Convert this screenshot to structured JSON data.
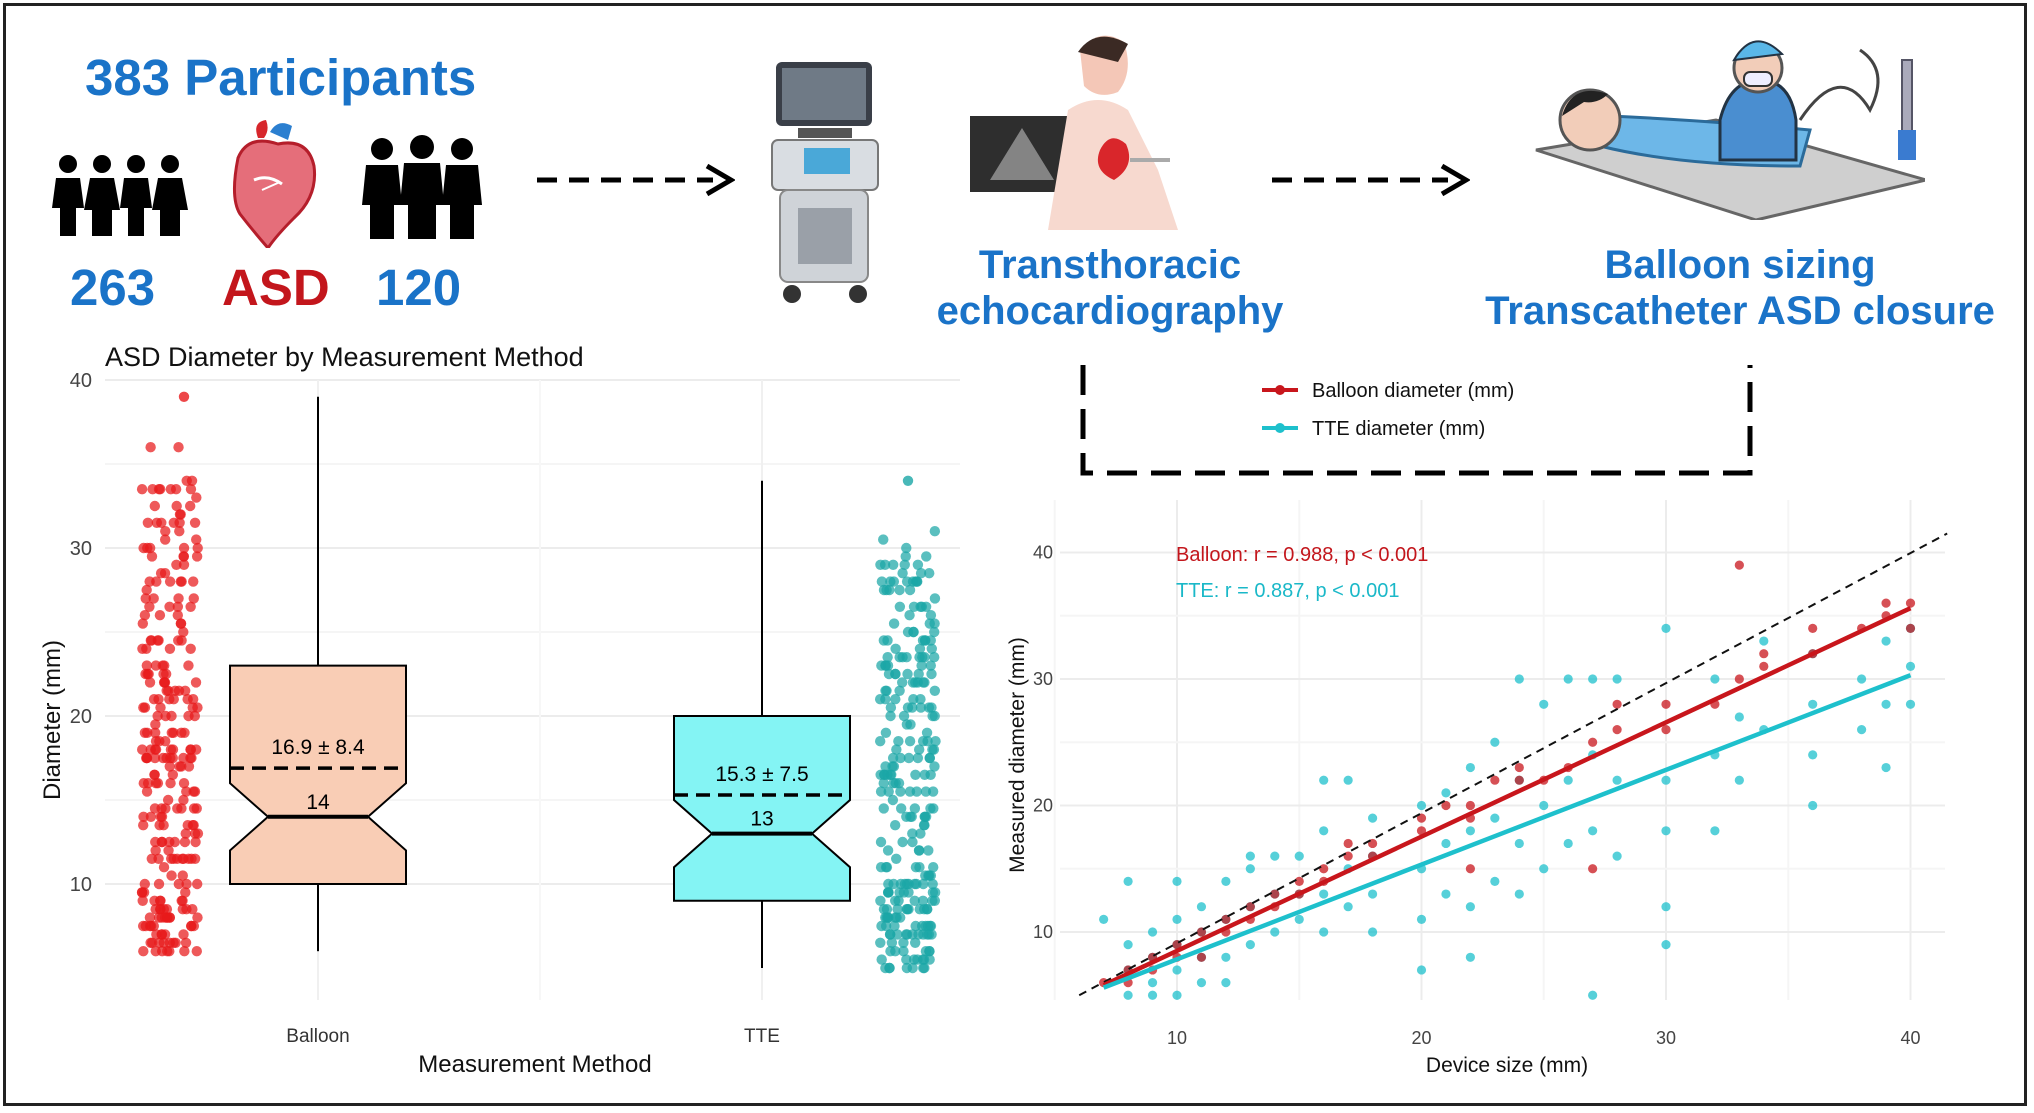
{
  "infographic": {
    "participants_title": "383 Participants",
    "group_left_count": "263",
    "group_center_label": "ASD",
    "group_right_count": "120",
    "step2_title_line1": "Transthoracic",
    "step2_title_line2": "echocardiography",
    "step3_title_line1": "Balloon sizing",
    "step3_title_line2": "Transcatheter ASD closure",
    "colors": {
      "blue": "#1a73c8",
      "red": "#c3161c"
    },
    "icons": [
      "family-icon",
      "heart-icon",
      "group-icon",
      "ultrasound-machine-icon",
      "echo-patient-icon",
      "catheter-procedure-icon",
      "arrow-icon"
    ]
  },
  "chart_data": [
    {
      "type": "box",
      "title": "ASD Diameter by Measurement Method",
      "xlabel": "Measurement Method",
      "ylabel": "Diameter (mm)",
      "ylim": [
        5,
        40
      ],
      "yticks": [
        10,
        20,
        30,
        40
      ],
      "categories": [
        "Balloon",
        "TTE"
      ],
      "grid": true,
      "boxes": [
        {
          "name": "Balloon",
          "min": 6,
          "q1": 10,
          "median": 14,
          "q3": 23,
          "max": 39,
          "mean": 16.9,
          "median_label": "14",
          "mean_label": "16.9 ± 8.4",
          "fill": "#f9cdb5",
          "point_color": "#e8191b"
        },
        {
          "name": "TTE",
          "min": 5,
          "q1": 9,
          "median": 13,
          "q3": 20,
          "max": 34,
          "mean": 15.3,
          "median_label": "13",
          "mean_label": "15.3 ± 7.5",
          "fill": "#84f4f4",
          "point_color": "#1aa6a6"
        }
      ]
    },
    {
      "type": "scatter",
      "xlabel": "Device size (mm)",
      "ylabel": "Measured diameter (mm)",
      "xlim": [
        6,
        41
      ],
      "ylim": [
        5,
        42
      ],
      "xticks": [
        10,
        20,
        30,
        40
      ],
      "yticks": [
        10,
        20,
        30,
        40
      ],
      "grid": true,
      "legend_position": "top",
      "annotations": [
        {
          "text": "Balloon: r = 0.988, p < 0.001",
          "color": "#c3161c"
        },
        {
          "text": "TTE: r = 0.887, p < 0.001",
          "color": "#1ab8c8"
        }
      ],
      "identity_line": {
        "x": [
          6,
          41.5
        ],
        "y": [
          5,
          41.5
        ]
      },
      "series": [
        {
          "name": "Balloon diameter (mm)",
          "color": "#c8161c",
          "fit": {
            "x": [
              7,
              40
            ],
            "y": [
              5.8,
              35.6
            ]
          },
          "points": [
            [
              7,
              6
            ],
            [
              8,
              6
            ],
            [
              8,
              7
            ],
            [
              9,
              7
            ],
            [
              9,
              8
            ],
            [
              10,
              8
            ],
            [
              10,
              9
            ],
            [
              11,
              8
            ],
            [
              11,
              10
            ],
            [
              12,
              10
            ],
            [
              12,
              11
            ],
            [
              13,
              11
            ],
            [
              13,
              12
            ],
            [
              14,
              12
            ],
            [
              14,
              13
            ],
            [
              15,
              13
            ],
            [
              15,
              14
            ],
            [
              16,
              14
            ],
            [
              16,
              15
            ],
            [
              17,
              16
            ],
            [
              17,
              17
            ],
            [
              18,
              16
            ],
            [
              18,
              17
            ],
            [
              20,
              18
            ],
            [
              20,
              19
            ],
            [
              21,
              20
            ],
            [
              22,
              15
            ],
            [
              22,
              19
            ],
            [
              22,
              20
            ],
            [
              23,
              22
            ],
            [
              24,
              22
            ],
            [
              24,
              23
            ],
            [
              25,
              22
            ],
            [
              26,
              23
            ],
            [
              27,
              15
            ],
            [
              27,
              25
            ],
            [
              28,
              26
            ],
            [
              28,
              28
            ],
            [
              30,
              26
            ],
            [
              30,
              28
            ],
            [
              32,
              28
            ],
            [
              33,
              39
            ],
            [
              33,
              30
            ],
            [
              34,
              31
            ],
            [
              34,
              32
            ],
            [
              36,
              32
            ],
            [
              36,
              34
            ],
            [
              38,
              34
            ],
            [
              39,
              35
            ],
            [
              39,
              36
            ],
            [
              40,
              34
            ],
            [
              40,
              36
            ]
          ]
        },
        {
          "name": "TTE diameter (mm)",
          "color": "#1ec0cc",
          "fit": {
            "x": [
              7,
              40
            ],
            "y": [
              5.6,
              30.3
            ]
          },
          "points": [
            [
              7,
              11
            ],
            [
              8,
              5
            ],
            [
              8,
              7
            ],
            [
              8,
              9
            ],
            [
              8,
              14
            ],
            [
              9,
              5
            ],
            [
              9,
              6
            ],
            [
              9,
              8
            ],
            [
              9,
              10
            ],
            [
              10,
              5
            ],
            [
              10,
              7
            ],
            [
              10,
              9
            ],
            [
              10,
              11
            ],
            [
              10,
              14
            ],
            [
              11,
              6
            ],
            [
              11,
              8
            ],
            [
              11,
              10
            ],
            [
              11,
              12
            ],
            [
              12,
              6
            ],
            [
              12,
              8
            ],
            [
              12,
              11
            ],
            [
              12,
              14
            ],
            [
              13,
              9
            ],
            [
              13,
              12
            ],
            [
              13,
              15
            ],
            [
              13,
              16
            ],
            [
              14,
              10
            ],
            [
              14,
              13
            ],
            [
              14,
              16
            ],
            [
              15,
              11
            ],
            [
              15,
              13
            ],
            [
              15,
              16
            ],
            [
              16,
              10
            ],
            [
              16,
              13
            ],
            [
              16,
              18
            ],
            [
              16,
              22
            ],
            [
              17,
              12
            ],
            [
              17,
              15
            ],
            [
              17,
              22
            ],
            [
              18,
              10
            ],
            [
              18,
              13
            ],
            [
              18,
              16
            ],
            [
              18,
              19
            ],
            [
              20,
              7
            ],
            [
              20,
              11
            ],
            [
              20,
              15
            ],
            [
              20,
              20
            ],
            [
              21,
              13
            ],
            [
              21,
              17
            ],
            [
              21,
              21
            ],
            [
              22,
              8
            ],
            [
              22,
              12
            ],
            [
              22,
              18
            ],
            [
              22,
              23
            ],
            [
              23,
              14
            ],
            [
              23,
              19
            ],
            [
              23,
              25
            ],
            [
              24,
              13
            ],
            [
              24,
              17
            ],
            [
              24,
              22
            ],
            [
              24,
              30
            ],
            [
              25,
              15
            ],
            [
              25,
              20
            ],
            [
              25,
              28
            ],
            [
              26,
              17
            ],
            [
              26,
              22
            ],
            [
              26,
              30
            ],
            [
              27,
              5
            ],
            [
              27,
              18
            ],
            [
              27,
              24
            ],
            [
              27,
              30
            ],
            [
              28,
              16
            ],
            [
              28,
              22
            ],
            [
              28,
              30
            ],
            [
              30,
              9
            ],
            [
              30,
              12
            ],
            [
              30,
              18
            ],
            [
              30,
              22
            ],
            [
              30,
              34
            ],
            [
              32,
              18
            ],
            [
              32,
              24
            ],
            [
              32,
              30
            ],
            [
              33,
              22
            ],
            [
              33,
              27
            ],
            [
              34,
              26
            ],
            [
              34,
              33
            ],
            [
              36,
              20
            ],
            [
              36,
              24
            ],
            [
              36,
              28
            ],
            [
              36,
              32
            ],
            [
              38,
              26
            ],
            [
              38,
              30
            ],
            [
              39,
              23
            ],
            [
              39,
              28
            ],
            [
              39,
              33
            ],
            [
              40,
              28
            ],
            [
              40,
              31
            ],
            [
              40,
              34
            ]
          ]
        }
      ]
    }
  ]
}
